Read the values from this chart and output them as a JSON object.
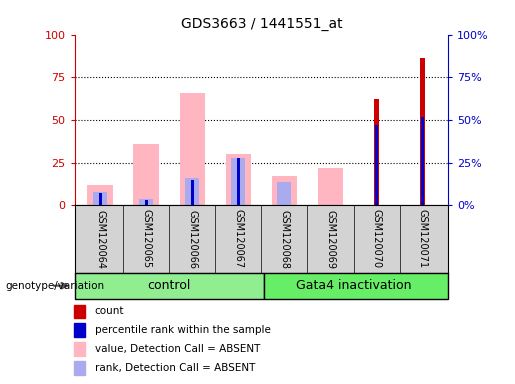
{
  "title": "GDS3663 / 1441551_at",
  "samples": [
    "GSM120064",
    "GSM120065",
    "GSM120066",
    "GSM120067",
    "GSM120068",
    "GSM120069",
    "GSM120070",
    "GSM120071"
  ],
  "count_red": [
    0,
    0,
    0,
    0,
    0,
    0,
    62,
    86
  ],
  "percentile_blue": [
    7,
    3,
    15,
    28,
    0,
    0,
    47,
    52
  ],
  "value_absent_pink": [
    12,
    36,
    66,
    30,
    17,
    22,
    0,
    0
  ],
  "rank_absent_lightblue": [
    8,
    4,
    16,
    28,
    14,
    0,
    0,
    0
  ],
  "ylim": [
    0,
    100
  ],
  "y_ticks": [
    0,
    25,
    50,
    75,
    100
  ],
  "color_red": "#CC0000",
  "color_blue": "#0000CC",
  "color_pink": "#FFB6C1",
  "color_lightblue": "#AAAAEE",
  "control_color": "#90EE90",
  "gata4_color": "#66EE66",
  "background_gray": "#D3D3D3",
  "groups_label": [
    "control",
    "Gata4 inactivation"
  ],
  "legend_items": [
    {
      "color": "#CC0000",
      "label": "count"
    },
    {
      "color": "#0000CC",
      "label": "percentile rank within the sample"
    },
    {
      "color": "#FFB6C1",
      "label": "value, Detection Call = ABSENT"
    },
    {
      "color": "#AAAAEE",
      "label": "rank, Detection Call = ABSENT"
    }
  ]
}
